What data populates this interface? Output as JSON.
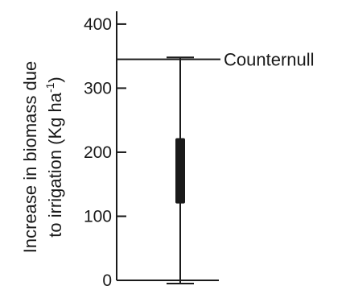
{
  "chart_data": {
    "type": "box",
    "ylabel_line1": "Increase in biomass due",
    "ylabel_line2_prefix": "to irrigation (Kg ha",
    "ylabel_line2_sup": "-1",
    "ylabel_line2_suffix": ")",
    "ylim": [
      0,
      420
    ],
    "yticks": [
      {
        "value": 0,
        "label": "0"
      },
      {
        "value": 100,
        "label": "100"
      },
      {
        "value": 200,
        "label": "200"
      },
      {
        "value": 300,
        "label": "300"
      },
      {
        "value": 400,
        "label": "400"
      }
    ],
    "box": {
      "min": -5,
      "q1": 120,
      "median": 170,
      "q3": 222,
      "max": 348
    },
    "annotation": {
      "label": "Counternull",
      "value": 345
    },
    "grid": false,
    "legend": "none"
  }
}
